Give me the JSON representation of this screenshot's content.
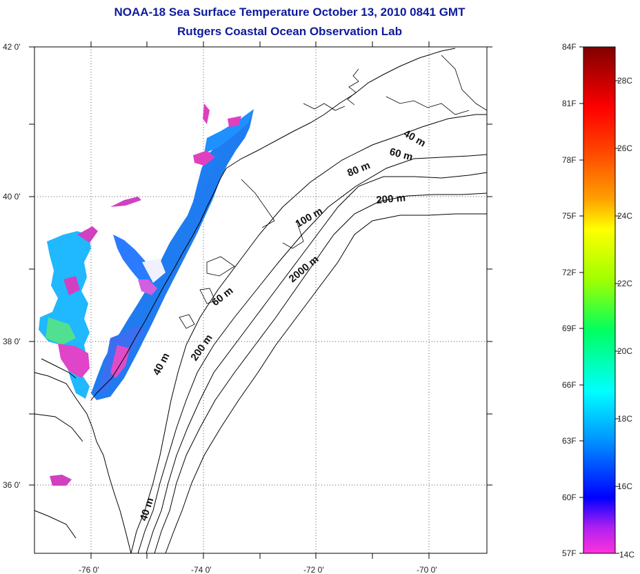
{
  "title": {
    "line1": "NOAA-18 Sea Surface Temperature October 13, 2010 0841 GMT",
    "line2": "Rutgers Coastal Ocean Observation Lab"
  },
  "map": {
    "lat_ticks": [
      "42 0'",
      "40 0'",
      "38 0'",
      "36 0'"
    ],
    "lon_ticks": [
      "-76 0'",
      "-74 0'",
      "-72 0'",
      "-70 0'"
    ],
    "contour_labels": [
      "40 m",
      "60 m",
      "80 m",
      "200 m",
      "100 m",
      "2000 m",
      "60 m",
      "200 m",
      "40 m",
      "40 m"
    ]
  },
  "colorbar": {
    "fahrenheit": [
      "84F",
      "81F",
      "78F",
      "75F",
      "72F",
      "69F",
      "66F",
      "63F",
      "60F",
      "57F"
    ],
    "celsius": [
      "28C",
      "26C",
      "24C",
      "22C",
      "20C",
      "18C",
      "16C",
      "14C"
    ],
    "colors": [
      "#ff33cc",
      "#7b00ff",
      "#0000ff",
      "#00a0ff",
      "#00ffff",
      "#00ff80",
      "#80ff00",
      "#ffff00",
      "#ffb000",
      "#ff6000",
      "#ff0000",
      "#c00000",
      "#800000"
    ]
  }
}
